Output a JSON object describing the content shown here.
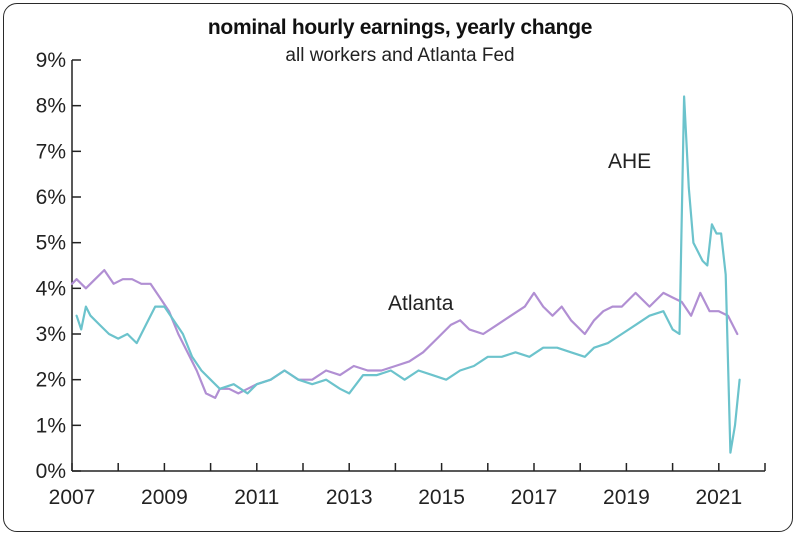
{
  "chart_data": {
    "type": "line",
    "title": "nominal hourly earnings, yearly change",
    "subtitle": "all workers and Atlanta Fed",
    "xlabel": "",
    "ylabel": "",
    "xlim": [
      2007,
      2022
    ],
    "ylim": [
      0,
      9
    ],
    "x_ticks": [
      "2007",
      "2009",
      "2011",
      "2013",
      "2015",
      "2017",
      "2019",
      "2021"
    ],
    "y_ticks": [
      "0%",
      "1%",
      "2%",
      "3%",
      "4%",
      "5%",
      "6%",
      "7%",
      "8%",
      "9%"
    ],
    "grid": false,
    "colors": {
      "atlanta": "#b18fd3",
      "ahe": "#6cc3cc",
      "axis": "#222222"
    },
    "annotations": [
      {
        "text": "AHE",
        "series": "ahe"
      },
      {
        "text": "Atlanta",
        "series": "atlanta"
      }
    ],
    "series": [
      {
        "name": "Atlanta",
        "x": [
          2007.0,
          2007.1,
          2007.3,
          2007.5,
          2007.7,
          2007.9,
          2008.1,
          2008.3,
          2008.5,
          2008.7,
          2008.9,
          2009.1,
          2009.3,
          2009.5,
          2009.7,
          2009.9,
          2010.1,
          2010.2,
          2010.4,
          2010.6,
          2010.8,
          2011.0,
          2011.3,
          2011.6,
          2011.9,
          2012.2,
          2012.5,
          2012.8,
          2013.1,
          2013.4,
          2013.7,
          2014.0,
          2014.3,
          2014.6,
          2014.9,
          2015.2,
          2015.4,
          2015.6,
          2015.9,
          2016.2,
          2016.5,
          2016.8,
          2017.0,
          2017.2,
          2017.4,
          2017.6,
          2017.8,
          2018.1,
          2018.3,
          2018.5,
          2018.7,
          2018.9,
          2019.2,
          2019.5,
          2019.8,
          2020.0,
          2020.2,
          2020.4,
          2020.6,
          2020.8,
          2021.0,
          2021.2,
          2021.4
        ],
        "values": [
          4.1,
          4.2,
          4.0,
          4.2,
          4.4,
          4.1,
          4.2,
          4.2,
          4.1,
          4.1,
          3.8,
          3.5,
          3.0,
          2.6,
          2.2,
          1.7,
          1.6,
          1.8,
          1.8,
          1.7,
          1.8,
          1.9,
          2.0,
          2.2,
          2.0,
          2.0,
          2.2,
          2.1,
          2.3,
          2.2,
          2.2,
          2.3,
          2.4,
          2.6,
          2.9,
          3.2,
          3.3,
          3.1,
          3.0,
          3.2,
          3.4,
          3.6,
          3.9,
          3.6,
          3.4,
          3.6,
          3.3,
          3.0,
          3.3,
          3.5,
          3.6,
          3.6,
          3.9,
          3.6,
          3.9,
          3.8,
          3.7,
          3.4,
          3.9,
          3.5,
          3.5,
          3.4,
          3.0
        ]
      },
      {
        "name": "AHE",
        "x": [
          2007.1,
          2007.2,
          2007.3,
          2007.4,
          2007.6,
          2007.8,
          2008.0,
          2008.2,
          2008.4,
          2008.6,
          2008.8,
          2009.0,
          2009.2,
          2009.4,
          2009.6,
          2009.8,
          2010.0,
          2010.2,
          2010.5,
          2010.8,
          2011.0,
          2011.3,
          2011.6,
          2011.9,
          2012.2,
          2012.5,
          2012.8,
          2013.0,
          2013.3,
          2013.6,
          2013.9,
          2014.2,
          2014.5,
          2014.8,
          2015.1,
          2015.4,
          2015.7,
          2016.0,
          2016.3,
          2016.6,
          2016.9,
          2017.2,
          2017.5,
          2017.8,
          2018.1,
          2018.3,
          2018.6,
          2018.9,
          2019.2,
          2019.5,
          2019.8,
          2020.0,
          2020.15,
          2020.25,
          2020.35,
          2020.45,
          2020.55,
          2020.65,
          2020.75,
          2020.85,
          2020.95,
          2021.05,
          2021.15,
          2021.25,
          2021.35,
          2021.45
        ],
        "values": [
          3.4,
          3.1,
          3.6,
          3.4,
          3.2,
          3.0,
          2.9,
          3.0,
          2.8,
          3.2,
          3.6,
          3.6,
          3.3,
          3.0,
          2.5,
          2.2,
          2.0,
          1.8,
          1.9,
          1.7,
          1.9,
          2.0,
          2.2,
          2.0,
          1.9,
          2.0,
          1.8,
          1.7,
          2.1,
          2.1,
          2.2,
          2.0,
          2.2,
          2.1,
          2.0,
          2.2,
          2.3,
          2.5,
          2.5,
          2.6,
          2.5,
          2.7,
          2.7,
          2.6,
          2.5,
          2.7,
          2.8,
          3.0,
          3.2,
          3.4,
          3.5,
          3.1,
          3.0,
          8.2,
          6.2,
          5.0,
          4.8,
          4.6,
          4.5,
          5.4,
          5.2,
          5.2,
          4.3,
          0.4,
          1.0,
          2.0
        ]
      }
    ]
  }
}
